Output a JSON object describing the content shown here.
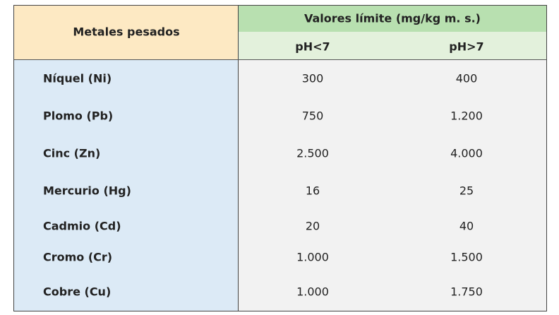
{
  "header": {
    "label": "Metales pesados",
    "group": "Valores límite (mg/kg m. s.)",
    "subcolumns": [
      "pH<7",
      "pH>7"
    ]
  },
  "table": {
    "rows": [
      [
        "Níquel (Ni)",
        "300",
        "400"
      ],
      [
        "Plomo (Pb)",
        "750",
        "1.200"
      ],
      [
        "Cinc (Zn)",
        "2.500",
        "4.000"
      ],
      [
        "Mercurio (Hg)",
        "16",
        "25"
      ],
      [
        "Cadmio (Cd)",
        "20",
        "40"
      ],
      [
        "Cromo (Cr)",
        "1.000",
        "1.500"
      ],
      [
        "Cobre (Cu)",
        "1.000",
        "1.750"
      ]
    ]
  }
}
